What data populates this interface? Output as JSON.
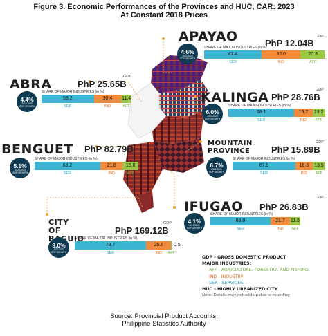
{
  "title_line1": "Figure 3. Economic Performances of the Provinces and HUC, CAR: 2023",
  "title_line2": "At Constant 2018 Prices",
  "tags": {
    "gdp": "GDP",
    "share": "SHARE OF MAJOR INDUSTRIES (in %)",
    "growth_period": "2022-2023",
    "growth_label": "GDP GROWTH",
    "ser": "SER",
    "ind": "IND",
    "aff": "AFF"
  },
  "colors": {
    "ser": "#3cb4d2",
    "ind": "#f08a3c",
    "aff": "#9cc84a",
    "badge": "#0f3a52",
    "accent_line": "#f0a030"
  },
  "chart_data": {
    "type": "bar",
    "orientation": "horizontal-stacked",
    "unit": "%",
    "series_keys": [
      "SER",
      "IND",
      "AFF"
    ],
    "regions": [
      {
        "key": "apayao",
        "name": "APAYAO",
        "gdp": "PhP 12.04B",
        "growth": "4.6%",
        "ser": 47.4,
        "ind": 32.0,
        "aff": 20.3
      },
      {
        "key": "abra",
        "name": "ABRA",
        "gdp": "PhP 25.65B",
        "growth": "4.4%",
        "ser": 58.2,
        "ind": 30.4,
        "aff": 11.4
      },
      {
        "key": "kalinga",
        "name": "KALINGA",
        "gdp": "PhP 28.76B",
        "growth": "6.0%",
        "ser": 68.1,
        "ind": 18.7,
        "aff": 13.2
      },
      {
        "key": "benguet",
        "name": "BENGUET",
        "gdp": "PhP 82.79B",
        "growth": "5.1%",
        "ser": 63.2,
        "ind": 21.8,
        "aff": 15.0
      },
      {
        "key": "mtprov",
        "name_line1": "MOUNTAIN",
        "name_line2": "PROVINCE",
        "gdp": "PhP 15.89B",
        "growth": "6.7%",
        "ser": 67.9,
        "ind": 18.6,
        "aff": 13.5
      },
      {
        "key": "ifugao",
        "name": "IFUGAO",
        "gdp": "PhP 26.83B",
        "growth": "4.1%",
        "ser": 66.9,
        "ind": 21.7,
        "aff": 11.5
      },
      {
        "key": "baguio",
        "name_line1": "CITY OF",
        "name_line2": "BAGUIO",
        "gdp": "PhP 169.12B",
        "growth": "9.0%",
        "ser": 73.7,
        "ind": 25.8,
        "aff": 0.5
      }
    ]
  },
  "legend": {
    "gdp": "GDP - GROSS DOMESTIC PRODUCT",
    "major": "MAJOR INDUSTRIES:",
    "aff": "AFF - AGRICULTURE, FORESTRY, AND FISHING",
    "ind": "IND - INDUSTRY",
    "ser": "SER - SERVICES",
    "huc": "HUC - HIGHLY URBANIZED CITY",
    "note": "Note: Details may not add up due to rounding"
  },
  "source_line1": "Source: Provincial Product Accounts,",
  "source_line2": "Philippine Statistics Authority"
}
